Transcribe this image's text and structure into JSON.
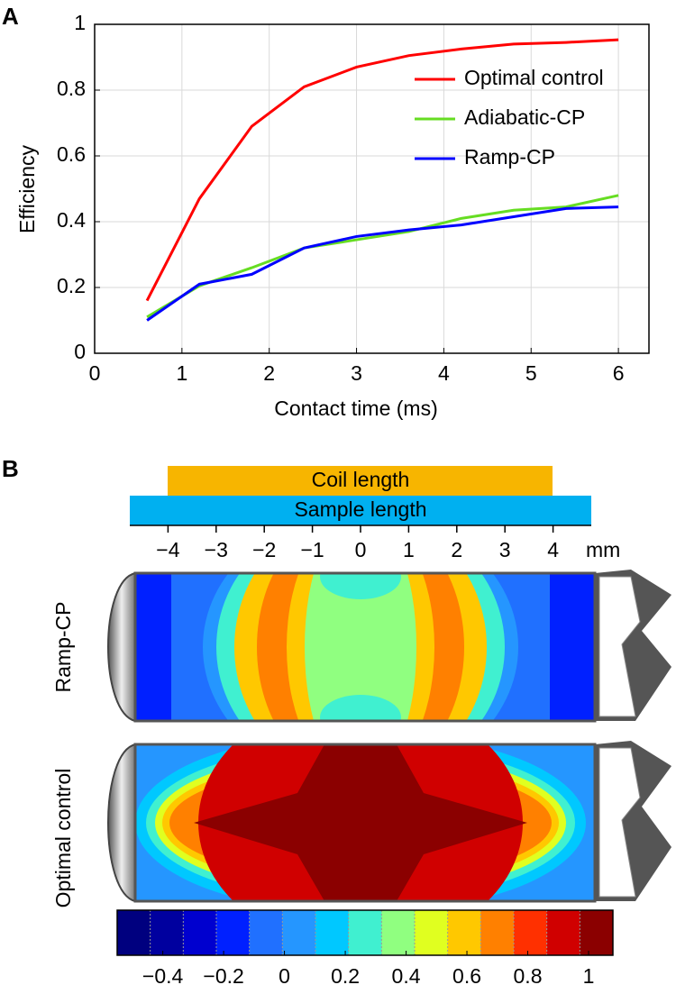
{
  "panel_labels": [
    "A",
    "B"
  ],
  "chart_data": {
    "type": "line",
    "xlabel": "Contact time (ms)",
    "ylabel": "Efficiency",
    "x": [
      0.6,
      1.2,
      1.8,
      2.4,
      3.0,
      3.6,
      4.2,
      4.8,
      5.4,
      6.0
    ],
    "series": [
      {
        "name": "Optimal control",
        "color": "#ff0000",
        "values": [
          0.16,
          0.47,
          0.69,
          0.81,
          0.87,
          0.905,
          0.925,
          0.94,
          0.945,
          0.953
        ]
      },
      {
        "name": "Adiabatic-CP",
        "color": "#66dd22",
        "values": [
          0.11,
          0.205,
          0.26,
          0.32,
          0.345,
          0.37,
          0.41,
          0.435,
          0.445,
          0.48
        ]
      },
      {
        "name": "Ramp-CP",
        "color": "#0000ff",
        "values": [
          0.1,
          0.21,
          0.24,
          0.32,
          0.355,
          0.375,
          0.39,
          0.415,
          0.44,
          0.445
        ]
      }
    ],
    "xlim": [
      0,
      6.35
    ],
    "ylim": [
      0,
      1
    ],
    "xticks": [
      0,
      1,
      2,
      3,
      4,
      5,
      6
    ],
    "yticks": [
      0,
      0.2,
      0.4,
      0.6,
      0.8,
      1
    ],
    "grid": true,
    "legend": "top-right"
  },
  "panel_b": {
    "coil_label": "Coil length",
    "sample_label": "Sample length",
    "axis_ticks": [
      {
        "value": -4,
        "label": "−4"
      },
      {
        "value": -3,
        "label": "−3"
      },
      {
        "value": -2,
        "label": "−2"
      },
      {
        "value": -1,
        "label": "−1"
      },
      0,
      1,
      2,
      3,
      4
    ],
    "axis_unit": "mm",
    "rows": [
      "Ramp-CP",
      "Optimal control"
    ],
    "colorbar": {
      "lim": [
        -0.55,
        1.08
      ],
      "ticks": [
        {
          "value": -0.4,
          "label": "−0.4"
        },
        {
          "value": -0.2,
          "label": "−0.2"
        },
        0,
        0.2,
        0.4,
        0.6,
        0.8,
        1
      ],
      "colors": [
        "#00007f",
        "#00009f",
        "#0000cf",
        "#0020ff",
        "#2070ff",
        "#2596ff",
        "#00c8ff",
        "#40f0d0",
        "#90ff80",
        "#e0ff20",
        "#ffc800",
        "#ff8000",
        "#ff3000",
        "#d00000",
        "#8b0000"
      ]
    }
  }
}
